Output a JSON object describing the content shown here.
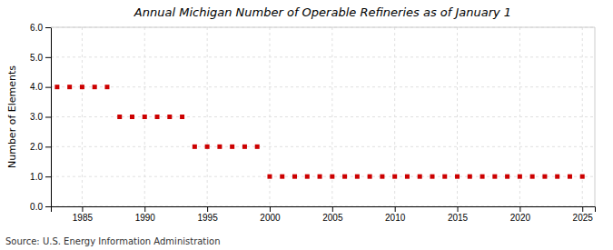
{
  "chart_data": {
    "type": "scatter",
    "title": "Annual Michigan Number of Operable Refineries as of January 1",
    "ylabel": "Number of Elements",
    "annotations": [
      "Source: U.S. Energy Information Administration"
    ],
    "x": [
      1983,
      1984,
      1985,
      1986,
      1987,
      1988,
      1989,
      1990,
      1991,
      1992,
      1993,
      1994,
      1995,
      1996,
      1997,
      1998,
      1999,
      2000,
      2001,
      2002,
      2003,
      2004,
      2005,
      2006,
      2007,
      2008,
      2009,
      2010,
      2011,
      2012,
      2013,
      2014,
      2015,
      2016,
      2017,
      2018,
      2019,
      2020,
      2021,
      2022,
      2023,
      2024,
      2025
    ],
    "values": [
      4,
      4,
      4,
      4,
      4,
      3,
      3,
      3,
      3,
      3,
      3,
      2,
      2,
      2,
      2,
      2,
      2,
      1,
      1,
      1,
      1,
      1,
      1,
      1,
      1,
      1,
      1,
      1,
      1,
      1,
      1,
      1,
      1,
      1,
      1,
      1,
      1,
      1,
      1,
      1,
      1,
      1,
      1
    ],
    "color": "#cc0000",
    "marker": "square",
    "xlim": [
      1982.5,
      2026
    ],
    "xticks": [
      1985,
      1990,
      1995,
      2000,
      2005,
      2010,
      2015,
      2020,
      2025
    ],
    "ylim": [
      0.0,
      6.0
    ],
    "yticks": [
      {
        "value": 0.0,
        "label": "0.0"
      },
      {
        "value": 1.0,
        "label": "1.0"
      },
      {
        "value": 2.0,
        "label": "2.0"
      },
      {
        "value": 3.0,
        "label": "3.0"
      },
      {
        "value": 4.0,
        "label": "4.0"
      },
      {
        "value": 5.0,
        "label": "5.0"
      },
      {
        "value": 6.0,
        "label": "6.0"
      }
    ],
    "grid": true
  }
}
